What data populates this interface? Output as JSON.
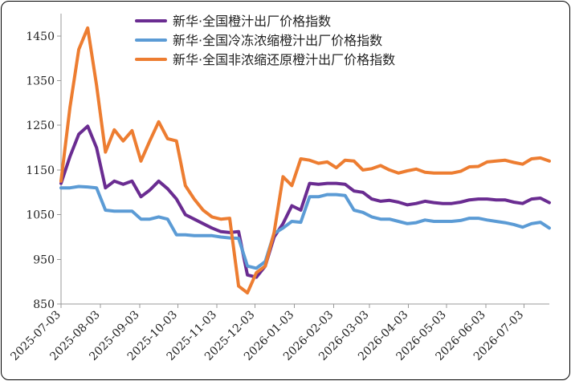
{
  "chart_data": {
    "type": "line",
    "title": "",
    "xlabel": "",
    "ylabel": "",
    "ylim": [
      850,
      1500
    ],
    "yticks": [
      850,
      950,
      1050,
      1150,
      1250,
      1350,
      1450
    ],
    "grid": false,
    "legend_position": "top",
    "colors": {
      "s1": "#6a2c91",
      "s2": "#5b9bd5",
      "s3": "#ed7d31"
    },
    "x_tick_labels": [
      "2025-07-03",
      "2025-08-03",
      "2025-09-03",
      "2025-10-03",
      "2025-11-03",
      "2025-12-03",
      "2026-01-03",
      "2026-02-03",
      "2026-03-03",
      "2026-04-03",
      "2026-05-03",
      "2026-06-03",
      "2026-07-03"
    ],
    "x": [
      "2025-07-03",
      "2025-07-10",
      "2025-07-17",
      "2025-07-24",
      "2025-07-31",
      "2025-08-07",
      "2025-08-14",
      "2025-08-21",
      "2025-08-28",
      "2025-09-04",
      "2025-09-11",
      "2025-09-18",
      "2025-09-25",
      "2025-10-02",
      "2025-10-09",
      "2025-10-16",
      "2025-10-23",
      "2025-10-30",
      "2025-11-06",
      "2025-11-13",
      "2025-11-20",
      "2025-11-27",
      "2025-12-04",
      "2025-12-11",
      "2025-12-18",
      "2025-12-25",
      "2026-01-01",
      "2026-01-08",
      "2026-01-15",
      "2026-01-22",
      "2026-01-29",
      "2026-02-05",
      "2026-02-12",
      "2026-02-19",
      "2026-02-26",
      "2026-03-05",
      "2026-03-12",
      "2026-03-19",
      "2026-03-26",
      "2026-04-02",
      "2026-04-09",
      "2026-04-16",
      "2026-04-23",
      "2026-04-30",
      "2026-05-07",
      "2026-05-14",
      "2026-05-21",
      "2026-05-28",
      "2026-06-04",
      "2026-06-11",
      "2026-06-18",
      "2026-06-25",
      "2026-07-02",
      "2026-07-09",
      "2026-07-16",
      "2026-07-23"
    ],
    "series": [
      {
        "name": "新华·全国橙汁出厂价格指数",
        "color_key": "s1",
        "values": [
          1120,
          1180,
          1230,
          1248,
          1200,
          1110,
          1125,
          1118,
          1125,
          1090,
          1105,
          1125,
          1108,
          1085,
          1050,
          1040,
          1030,
          1020,
          1012,
          1010,
          1012,
          915,
          910,
          935,
          1000,
          1030,
          1070,
          1060,
          1120,
          1118,
          1120,
          1120,
          1118,
          1103,
          1100,
          1085,
          1080,
          1082,
          1078,
          1072,
          1075,
          1080,
          1077,
          1075,
          1075,
          1078,
          1083,
          1085,
          1085,
          1083,
          1083,
          1078,
          1075,
          1085,
          1087,
          1077
        ]
      },
      {
        "name": "新华·全国冷冻浓缩橙汁出厂价格指数",
        "color_key": "s2",
        "values": [
          1110,
          1110,
          1113,
          1112,
          1110,
          1060,
          1058,
          1058,
          1058,
          1040,
          1040,
          1045,
          1040,
          1005,
          1005,
          1003,
          1003,
          1003,
          1000,
          998,
          997,
          935,
          930,
          945,
          1008,
          1020,
          1035,
          1033,
          1090,
          1090,
          1095,
          1095,
          1093,
          1060,
          1055,
          1045,
          1040,
          1040,
          1035,
          1030,
          1032,
          1038,
          1035,
          1035,
          1035,
          1037,
          1042,
          1042,
          1038,
          1035,
          1032,
          1028,
          1022,
          1030,
          1033,
          1020
        ]
      },
      {
        "name": "新华·全国非浓缩还原橙汁出厂价格指数",
        "color_key": "s3",
        "values": [
          1125,
          1290,
          1420,
          1468,
          1340,
          1190,
          1240,
          1215,
          1238,
          1170,
          1215,
          1258,
          1220,
          1215,
          1115,
          1085,
          1060,
          1045,
          1040,
          1042,
          890,
          875,
          920,
          935,
          1010,
          1135,
          1115,
          1175,
          1172,
          1165,
          1168,
          1155,
          1172,
          1170,
          1150,
          1153,
          1160,
          1150,
          1143,
          1148,
          1152,
          1145,
          1143,
          1143,
          1143,
          1147,
          1157,
          1158,
          1168,
          1170,
          1172,
          1167,
          1163,
          1175,
          1177,
          1170
        ]
      }
    ]
  }
}
